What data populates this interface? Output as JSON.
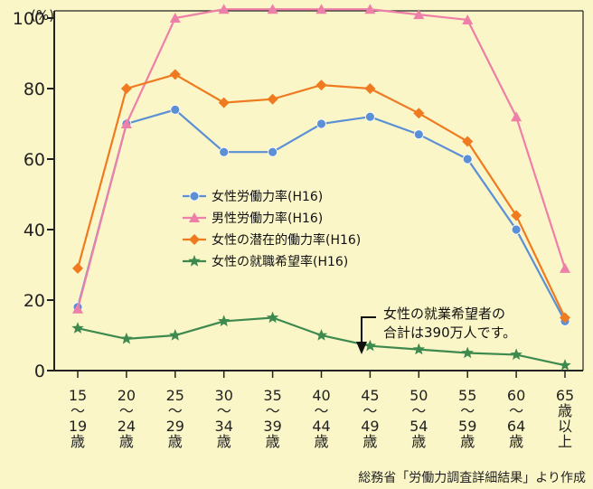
{
  "chart_data": {
    "type": "line",
    "unit": "(%)",
    "categories": [
      [
        "15",
        "〜",
        "19",
        "歳"
      ],
      [
        "20",
        "〜",
        "24",
        "歳"
      ],
      [
        "25",
        "〜",
        "29",
        "歳"
      ],
      [
        "30",
        "〜",
        "34",
        "歳"
      ],
      [
        "35",
        "〜",
        "39",
        "歳"
      ],
      [
        "40",
        "〜",
        "44",
        "歳"
      ],
      [
        "45",
        "〜",
        "49",
        "歳"
      ],
      [
        "50",
        "〜",
        "54",
        "歳"
      ],
      [
        "55",
        "〜",
        "59",
        "歳"
      ],
      [
        "60",
        "〜",
        "64",
        "歳"
      ],
      [
        "65",
        "歳",
        "以",
        "上"
      ]
    ],
    "ylim": [
      0,
      100
    ],
    "yticks": [
      0,
      20,
      40,
      60,
      80,
      100
    ],
    "grid": false,
    "series": [
      {
        "name": "女性労働力率(H16)",
        "color": "#5b8fd6",
        "marker": "circle",
        "values": [
          18,
          70,
          74,
          62,
          62,
          70,
          72,
          67,
          60,
          40,
          14
        ]
      },
      {
        "name": "男性労働力率(H16)",
        "color": "#ee7fa8",
        "marker": "triangle",
        "values": [
          17.5,
          70,
          100,
          102.5,
          102.5,
          102.5,
          102.5,
          101,
          99.5,
          72,
          29
        ]
      },
      {
        "name": "女性の潜在的働力率(H16)",
        "color": "#ef7a1f",
        "marker": "diamond",
        "values": [
          29,
          80,
          84,
          76,
          77,
          81,
          80,
          73,
          65,
          44,
          15
        ]
      },
      {
        "name": "女性の就職希望率(H16)",
        "color": "#3e8a4e",
        "marker": "star",
        "values": [
          12,
          9,
          10,
          14,
          15,
          10,
          7,
          6,
          5,
          4.5,
          1.5
        ]
      }
    ],
    "legend_position": "center",
    "annotation": [
      "女性の就業希望者の",
      "合計は390万人です。"
    ],
    "source": "総務省「労働力調査詳細結果」より作成"
  }
}
